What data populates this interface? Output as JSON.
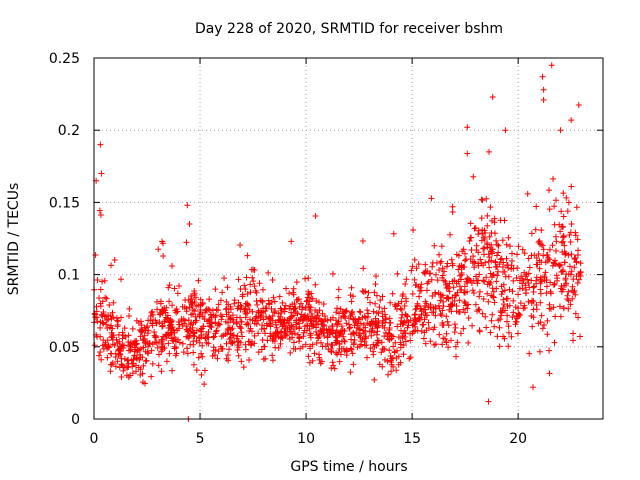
{
  "chart_data": {
    "type": "scatter",
    "title": "Day 228 of 2020, SRMTID for receiver bshm",
    "xlabel": "GPS time / hours",
    "ylabel": "SRMTID / TECUs",
    "xlim": [
      0,
      24
    ],
    "ylim": [
      0,
      0.25
    ],
    "grid": true,
    "marker": "+",
    "color": "#ff0000",
    "x_ticks": [
      0,
      5,
      10,
      15,
      20
    ],
    "y_ticks": [
      0,
      0.05,
      0.1,
      0.15,
      0.2,
      0.25
    ],
    "x_tick_labels": [
      "0",
      "5",
      "10",
      "15",
      "20"
    ],
    "y_tick_labels": [
      "0",
      "0.05",
      "0.1",
      "0.15",
      "0.2",
      "0.25"
    ],
    "trend": {
      "description": "approximate local mean level of the point cloud by hour",
      "x": [
        0,
        0.5,
        1,
        1.5,
        2,
        3,
        4,
        5,
        6,
        7,
        8,
        9,
        10,
        11,
        12,
        13,
        14,
        15,
        16,
        17,
        18,
        19,
        20,
        21,
        22,
        23
      ],
      "y": [
        0.08,
        0.065,
        0.055,
        0.045,
        0.05,
        0.06,
        0.065,
        0.065,
        0.065,
        0.07,
        0.065,
        0.065,
        0.07,
        0.06,
        0.06,
        0.065,
        0.055,
        0.075,
        0.08,
        0.085,
        0.1,
        0.1,
        0.085,
        0.095,
        0.11,
        0.1
      ],
      "spread": [
        0.04,
        0.025,
        0.02,
        0.018,
        0.02,
        0.022,
        0.022,
        0.025,
        0.022,
        0.025,
        0.022,
        0.022,
        0.022,
        0.02,
        0.02,
        0.022,
        0.022,
        0.028,
        0.03,
        0.035,
        0.04,
        0.04,
        0.035,
        0.04,
        0.045,
        0.04
      ]
    },
    "notable_points": [
      {
        "x": 0.1,
        "y": 0.165
      },
      {
        "x": 0.3,
        "y": 0.19
      },
      {
        "x": 0.35,
        "y": 0.17
      },
      {
        "x": 4.4,
        "y": 0.148
      },
      {
        "x": 4.5,
        "y": 0.135
      },
      {
        "x": 4.45,
        "y": 0.0
      },
      {
        "x": 9.3,
        "y": 0.123
      },
      {
        "x": 17.6,
        "y": 0.202
      },
      {
        "x": 18.8,
        "y": 0.223
      },
      {
        "x": 18.6,
        "y": 0.012
      },
      {
        "x": 20.7,
        "y": 0.022
      },
      {
        "x": 21.15,
        "y": 0.237
      },
      {
        "x": 21.2,
        "y": 0.228
      },
      {
        "x": 21.2,
        "y": 0.221
      },
      {
        "x": 22.5,
        "y": 0.207
      },
      {
        "x": 22.0,
        "y": 0.2
      },
      {
        "x": 19.4,
        "y": 0.2
      }
    ]
  }
}
